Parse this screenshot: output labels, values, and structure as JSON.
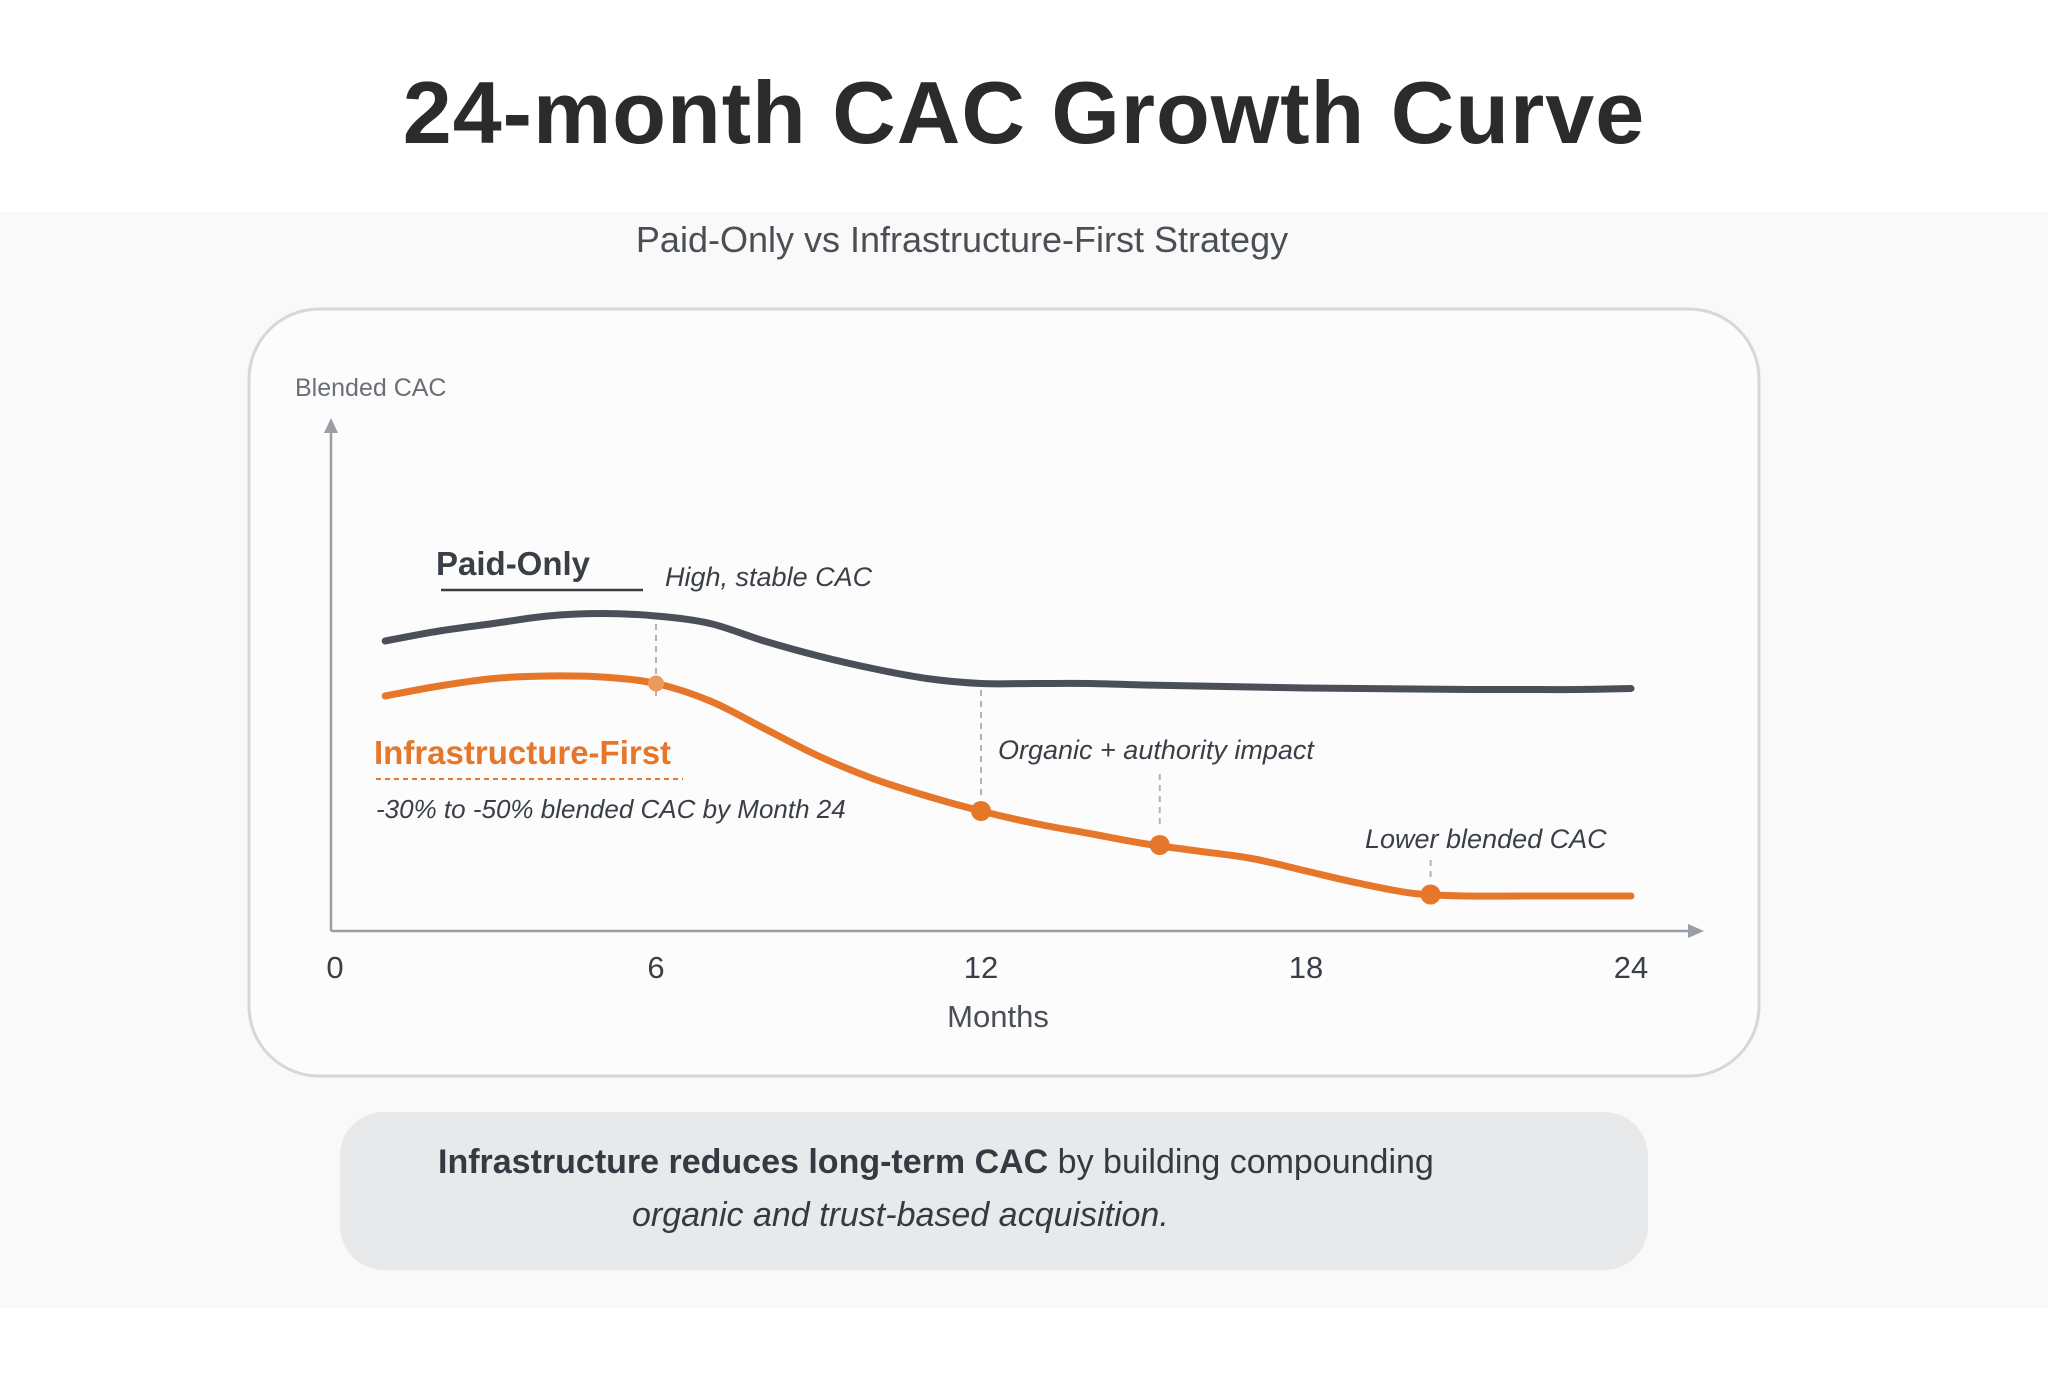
{
  "page": {
    "title": "24-month CAC Growth Curve",
    "footer": {
      "bold_text": "Infrastructure reduces long-term CAC",
      "regular_text": " by building compounding",
      "italic_text": "organic and trust-based acquisition."
    }
  },
  "colors": {
    "paid_only": "#4b5058",
    "infrastructure_first": "#e6772a",
    "axis": "#9a9ea5",
    "text": "#353a42"
  },
  "chart_data": {
    "type": "line",
    "title": "Paid-Only vs Infrastructure-First Strategy",
    "xlabel": "Months",
    "ylabel": "Blended CAC",
    "xlim": [
      0,
      24
    ],
    "ylim": [
      0,
      100
    ],
    "x_ticks": [
      0,
      6,
      12,
      18,
      24
    ],
    "grid": false,
    "series": [
      {
        "name": "Paid-Only",
        "annotation": "High, stable CAC",
        "x": [
          1,
          2,
          3,
          4,
          5,
          6,
          7,
          8,
          9,
          10,
          11,
          12,
          13,
          14,
          15,
          16,
          17,
          18,
          19,
          20,
          21,
          22,
          23,
          24
        ],
        "y": [
          58,
          60,
          61.5,
          63,
          63.5,
          63,
          61.5,
          58,
          55,
          52.5,
          50.5,
          49.5,
          49.5,
          49.5,
          49.2,
          49,
          48.8,
          48.6,
          48.5,
          48.4,
          48.3,
          48.3,
          48.3,
          48.5
        ]
      },
      {
        "name": "Infrastructure-First",
        "annotation": "-30% to -50% blended CAC by Month 24",
        "x": [
          1,
          2,
          3,
          4,
          5,
          6,
          7,
          8,
          9,
          10,
          11,
          12,
          13,
          14,
          15,
          16,
          17,
          18,
          19,
          20,
          21,
          22,
          23,
          24
        ],
        "y": [
          47,
          49,
          50.5,
          51,
          50.8,
          49.5,
          46,
          40.5,
          35,
          30.5,
          27,
          24,
          21.5,
          19.5,
          17.5,
          16,
          14.5,
          12,
          9.5,
          7.5,
          7,
          7,
          7,
          7
        ],
        "markers": [
          {
            "x": 6,
            "y": 49.5
          },
          {
            "x": 12,
            "y": 24
          },
          {
            "x": 15.3,
            "y": 17.2
          },
          {
            "x": 20.3,
            "y": 7.3
          }
        ]
      }
    ],
    "annotations": [
      {
        "text": "Organic + authority impact",
        "x": 15.3
      },
      {
        "text": "Lower blended CAC",
        "x": 20.3
      }
    ]
  }
}
